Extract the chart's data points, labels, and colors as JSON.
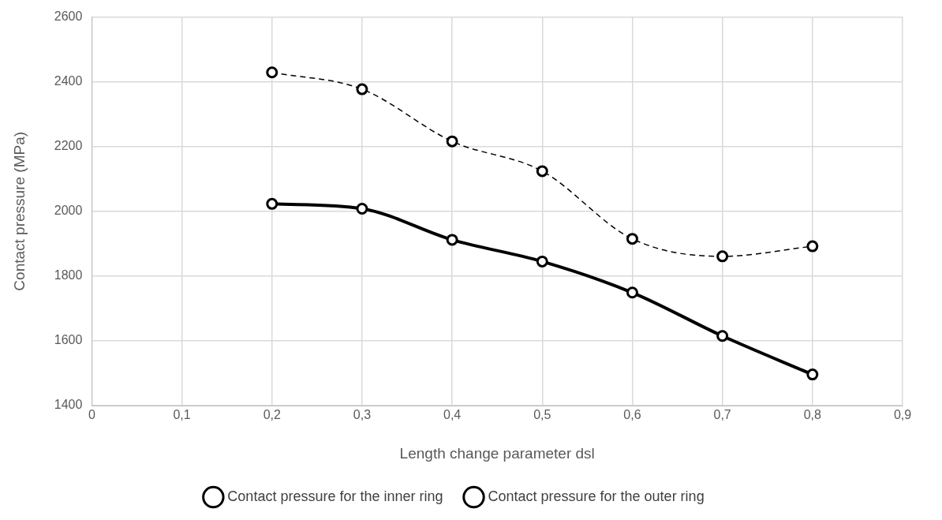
{
  "chart_data": {
    "type": "line",
    "xlabel": "Length change parameter dsl",
    "ylabel": "Contact pressure (MPa)",
    "x": [
      0.2,
      0.3,
      0.4,
      0.5,
      0.6,
      0.7,
      0.8
    ],
    "series": [
      {
        "name": "Contact pressure for the inner ring",
        "color": "#000000",
        "line_style": "dashed",
        "values": [
          2429,
          2377,
          2216,
          2124,
          1915,
          1861,
          1892
        ]
      },
      {
        "name": "Contact pressure for the outer ring",
        "color": "#000000",
        "line_style": "solid",
        "values": [
          2023,
          2008,
          1912,
          1845,
          1749,
          1615,
          1496
        ]
      }
    ],
    "xlim": [
      0,
      0.9
    ],
    "xticks": [
      0,
      {
        "value": 0.1,
        "label": "0,1"
      },
      {
        "value": 0.2,
        "label": "0,2"
      },
      {
        "value": 0.3,
        "label": "0,3"
      },
      {
        "value": 0.4,
        "label": "0,4"
      },
      {
        "value": 0.5,
        "label": "0,5"
      },
      {
        "value": 0.6,
        "label": "0,6"
      },
      {
        "value": 0.7,
        "label": "0,7"
      },
      {
        "value": 0.8,
        "label": "0,8"
      },
      {
        "value": 0.9,
        "label": "0,9"
      }
    ],
    "ylim": [
      1400,
      2600
    ],
    "yticks": [
      1400,
      1600,
      1800,
      2000,
      2200,
      2400,
      2600
    ],
    "grid": true,
    "legend": "bottom",
    "marker": "circle"
  }
}
